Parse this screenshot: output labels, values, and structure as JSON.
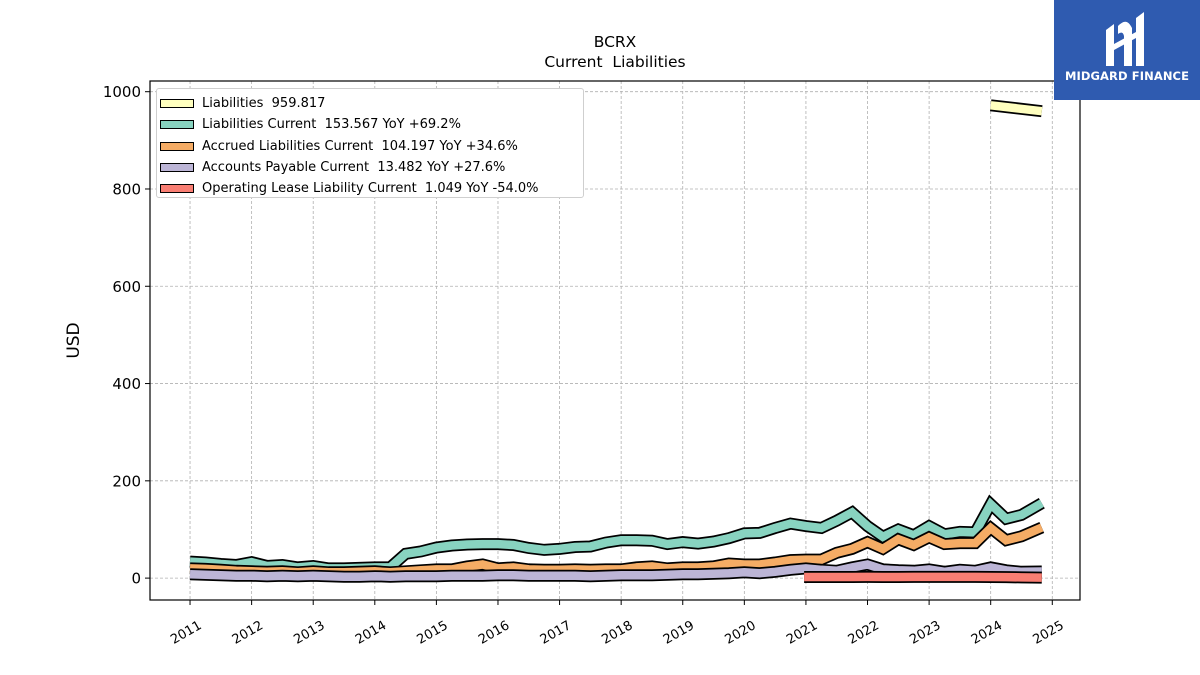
{
  "logo": {
    "text": "MIDGARD FINANCE",
    "icon": "midgard-logo-icon",
    "background": "#2f5bb0"
  },
  "chart_data": {
    "type": "area",
    "title": "BCRX",
    "subtitle": "Current  Liabilities",
    "ylabel": "USD",
    "xlabel": "",
    "xlim": [
      2010.35,
      2025.45
    ],
    "ylim": [
      -45,
      1022
    ],
    "yticks": [
      0,
      200,
      400,
      600,
      800,
      1000
    ],
    "xticks": [
      "2011",
      "2012",
      "2013",
      "2014",
      "2015",
      "2016",
      "2017",
      "2018",
      "2019",
      "2020",
      "2021",
      "2022",
      "2023",
      "2024",
      "2025"
    ],
    "grid": true,
    "legend_position": "top-left",
    "series": [
      {
        "name": "Liabilities",
        "legend": "Liabilities  959.817",
        "color": "#ffffbf",
        "points": [
          [
            2024.0,
            972
          ],
          [
            2024.83,
            960
          ]
        ]
      },
      {
        "name": "Liabilities Current",
        "legend": "Liabilities Current  153.567 YoY +69.2%",
        "color": "#88d3c0",
        "points": [
          [
            2011.0,
            34
          ],
          [
            2011.25,
            32
          ],
          [
            2011.5,
            29
          ],
          [
            2011.75,
            27
          ],
          [
            2012.0,
            33
          ],
          [
            2012.25,
            25
          ],
          [
            2012.5,
            27
          ],
          [
            2012.75,
            22
          ],
          [
            2013.0,
            25
          ],
          [
            2013.25,
            20
          ],
          [
            2013.5,
            20
          ],
          [
            2013.75,
            21
          ],
          [
            2014.0,
            22
          ],
          [
            2014.25,
            22
          ],
          [
            2014.5,
            50
          ],
          [
            2014.75,
            55
          ],
          [
            2015.0,
            63
          ],
          [
            2015.25,
            67
          ],
          [
            2015.5,
            69
          ],
          [
            2015.75,
            70
          ],
          [
            2016.0,
            70
          ],
          [
            2016.25,
            68
          ],
          [
            2016.5,
            62
          ],
          [
            2016.75,
            58
          ],
          [
            2017.0,
            60
          ],
          [
            2017.25,
            64
          ],
          [
            2017.5,
            65
          ],
          [
            2017.75,
            73
          ],
          [
            2018.0,
            78
          ],
          [
            2018.25,
            78
          ],
          [
            2018.5,
            77
          ],
          [
            2018.75,
            70
          ],
          [
            2019.0,
            74
          ],
          [
            2019.25,
            71
          ],
          [
            2019.5,
            75
          ],
          [
            2019.75,
            82
          ],
          [
            2020.0,
            92
          ],
          [
            2020.25,
            93
          ],
          [
            2020.5,
            103
          ],
          [
            2020.75,
            112
          ],
          [
            2021.0,
            107
          ],
          [
            2021.25,
            103
          ],
          [
            2021.5,
            118
          ],
          [
            2021.75,
            135
          ],
          [
            2022.0,
            107
          ],
          [
            2022.25,
            85
          ],
          [
            2022.5,
            100
          ],
          [
            2022.75,
            88
          ],
          [
            2023.0,
            107
          ],
          [
            2023.25,
            90
          ],
          [
            2023.5,
            95
          ],
          [
            2023.75,
            94
          ],
          [
            2024.0,
            152
          ],
          [
            2024.25,
            122
          ],
          [
            2024.5,
            130
          ],
          [
            2024.83,
            154
          ]
        ]
      },
      {
        "name": "Accrued Liabilities Current",
        "legend": "Accrued Liabilities Current  104.197 YoY +34.6%",
        "color": "#f5ac65",
        "points": [
          [
            2011.0,
            20
          ],
          [
            2011.25,
            19
          ],
          [
            2011.5,
            17
          ],
          [
            2011.75,
            15
          ],
          [
            2012.0,
            14
          ],
          [
            2012.25,
            13
          ],
          [
            2012.5,
            14
          ],
          [
            2012.75,
            12
          ],
          [
            2013.0,
            14
          ],
          [
            2013.25,
            12
          ],
          [
            2013.5,
            12
          ],
          [
            2013.75,
            13
          ],
          [
            2014.0,
            14
          ],
          [
            2014.25,
            12
          ],
          [
            2014.5,
            14
          ],
          [
            2014.75,
            16
          ],
          [
            2015.0,
            18
          ],
          [
            2015.25,
            18
          ],
          [
            2015.5,
            24
          ],
          [
            2015.75,
            28
          ],
          [
            2016.0,
            20
          ],
          [
            2016.25,
            22
          ],
          [
            2016.5,
            18
          ],
          [
            2016.75,
            17
          ],
          [
            2017.0,
            17
          ],
          [
            2017.25,
            18
          ],
          [
            2017.5,
            17
          ],
          [
            2017.75,
            18
          ],
          [
            2018.0,
            18
          ],
          [
            2018.25,
            22
          ],
          [
            2018.5,
            24
          ],
          [
            2018.75,
            20
          ],
          [
            2019.0,
            22
          ],
          [
            2019.25,
            22
          ],
          [
            2019.5,
            24
          ],
          [
            2019.75,
            30
          ],
          [
            2020.0,
            28
          ],
          [
            2020.25,
            28
          ],
          [
            2020.5,
            32
          ],
          [
            2020.75,
            37
          ],
          [
            2021.0,
            38
          ],
          [
            2021.25,
            38
          ],
          [
            2021.5,
            52
          ],
          [
            2021.75,
            60
          ],
          [
            2022.0,
            74
          ],
          [
            2022.25,
            60
          ],
          [
            2022.5,
            80
          ],
          [
            2022.75,
            68
          ],
          [
            2023.0,
            84
          ],
          [
            2023.25,
            70
          ],
          [
            2023.5,
            72
          ],
          [
            2023.75,
            72
          ],
          [
            2024.0,
            103
          ],
          [
            2024.25,
            78
          ],
          [
            2024.5,
            86
          ],
          [
            2024.83,
            104
          ]
        ]
      },
      {
        "name": "Accounts Payable Current",
        "legend": "Accounts Payable Current  13.482 YoY +27.6%",
        "color": "#bcb5d6",
        "points": [
          [
            2011.0,
            8
          ],
          [
            2011.25,
            7
          ],
          [
            2011.5,
            6
          ],
          [
            2011.75,
            5
          ],
          [
            2012.0,
            5
          ],
          [
            2012.25,
            4
          ],
          [
            2012.5,
            5
          ],
          [
            2012.75,
            4
          ],
          [
            2013.0,
            5
          ],
          [
            2013.25,
            4
          ],
          [
            2013.5,
            3
          ],
          [
            2013.75,
            3
          ],
          [
            2014.0,
            4
          ],
          [
            2014.25,
            3
          ],
          [
            2014.5,
            4
          ],
          [
            2014.75,
            4
          ],
          [
            2015.0,
            4
          ],
          [
            2015.25,
            5
          ],
          [
            2015.5,
            5
          ],
          [
            2015.75,
            5
          ],
          [
            2016.0,
            6
          ],
          [
            2016.25,
            6
          ],
          [
            2016.5,
            5
          ],
          [
            2016.75,
            5
          ],
          [
            2017.0,
            5
          ],
          [
            2017.25,
            5
          ],
          [
            2017.5,
            4
          ],
          [
            2017.75,
            5
          ],
          [
            2018.0,
            6
          ],
          [
            2018.25,
            6
          ],
          [
            2018.5,
            6
          ],
          [
            2018.75,
            7
          ],
          [
            2019.0,
            8
          ],
          [
            2019.25,
            8
          ],
          [
            2019.5,
            9
          ],
          [
            2019.75,
            10
          ],
          [
            2020.0,
            12
          ],
          [
            2020.25,
            10
          ],
          [
            2020.5,
            13
          ],
          [
            2020.75,
            17
          ],
          [
            2021.0,
            20
          ],
          [
            2021.25,
            17
          ],
          [
            2021.5,
            15
          ],
          [
            2021.75,
            22
          ],
          [
            2022.0,
            28
          ],
          [
            2022.25,
            18
          ],
          [
            2022.5,
            16
          ],
          [
            2022.75,
            15
          ],
          [
            2023.0,
            18
          ],
          [
            2023.25,
            13
          ],
          [
            2023.5,
            17
          ],
          [
            2023.75,
            15
          ],
          [
            2024.0,
            22
          ],
          [
            2024.25,
            16
          ],
          [
            2024.5,
            13
          ],
          [
            2024.83,
            13.5
          ]
        ]
      },
      {
        "name": "Operating Lease Liability Current",
        "legend": "Operating Lease Liability Current  1.049 YoY -54.0%",
        "color": "#f97e73",
        "points": [
          [
            2020.97,
            2.2
          ],
          [
            2021.25,
            2.2
          ],
          [
            2021.5,
            2.2
          ],
          [
            2021.75,
            2.3
          ],
          [
            2022.0,
            2.4
          ],
          [
            2022.25,
            2.3
          ],
          [
            2022.5,
            2.3
          ],
          [
            2022.75,
            2.4
          ],
          [
            2023.0,
            2.4
          ],
          [
            2023.25,
            2.4
          ],
          [
            2023.5,
            2.4
          ],
          [
            2023.75,
            2.4
          ],
          [
            2024.0,
            2.3
          ],
          [
            2024.25,
            2.0
          ],
          [
            2024.5,
            1.5
          ],
          [
            2024.83,
            1.05
          ]
        ]
      }
    ]
  }
}
